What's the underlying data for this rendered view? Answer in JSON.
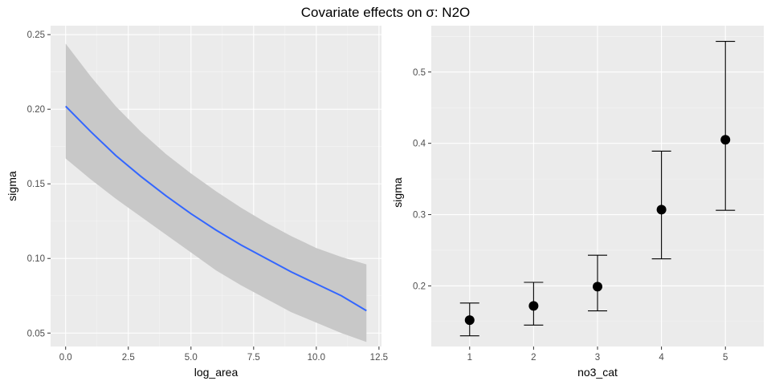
{
  "title": "Covariate effects on σ: N2O",
  "chart_data": [
    {
      "type": "line",
      "xlabel": "log_area",
      "ylabel": "sigma",
      "xlim": [
        -0.6,
        12.6
      ],
      "ylim": [
        0.041,
        0.256
      ],
      "x_ticks": [
        0.0,
        2.5,
        5.0,
        7.5,
        10.0,
        12.5
      ],
      "x_tick_labels": [
        "0.0",
        "2.5",
        "5.0",
        "7.5",
        "10.0",
        "12.5"
      ],
      "y_ticks": [
        0.05,
        0.1,
        0.15,
        0.2,
        0.25
      ],
      "y_tick_labels": [
        "0.05",
        "0.10",
        "0.15",
        "0.20",
        "0.25"
      ],
      "series": [
        {
          "x": [
            0,
            1,
            2,
            3,
            4,
            5,
            6,
            7,
            8,
            9,
            10,
            11,
            12
          ],
          "y": [
            0.202,
            0.185,
            0.169,
            0.155,
            0.142,
            0.13,
            0.119,
            0.109,
            0.1,
            0.091,
            0.083,
            0.075,
            0.065
          ],
          "lower": [
            0.167,
            0.153,
            0.14,
            0.128,
            0.116,
            0.104,
            0.092,
            0.082,
            0.073,
            0.064,
            0.057,
            0.05,
            0.044
          ],
          "upper": [
            0.244,
            0.222,
            0.202,
            0.185,
            0.17,
            0.157,
            0.145,
            0.134,
            0.124,
            0.115,
            0.107,
            0.101,
            0.096
          ]
        }
      ],
      "line_color": "#3366ff",
      "ribbon_color": "#c8c8c8",
      "grid": true
    },
    {
      "type": "scatter",
      "xlabel": "no3_cat",
      "ylabel": "sigma",
      "categories": [
        "1",
        "2",
        "3",
        "4",
        "5"
      ],
      "ylim": [
        0.115,
        0.565
      ],
      "y_ticks": [
        0.2,
        0.3,
        0.4,
        0.5
      ],
      "y_tick_labels": [
        "0.2",
        "0.3",
        "0.4",
        "0.5"
      ],
      "values": [
        0.152,
        0.172,
        0.199,
        0.307,
        0.405
      ],
      "lower": [
        0.13,
        0.145,
        0.165,
        0.238,
        0.306
      ],
      "upper": [
        0.176,
        0.205,
        0.243,
        0.389,
        0.543
      ],
      "point_color": "#000000",
      "grid": true
    }
  ]
}
